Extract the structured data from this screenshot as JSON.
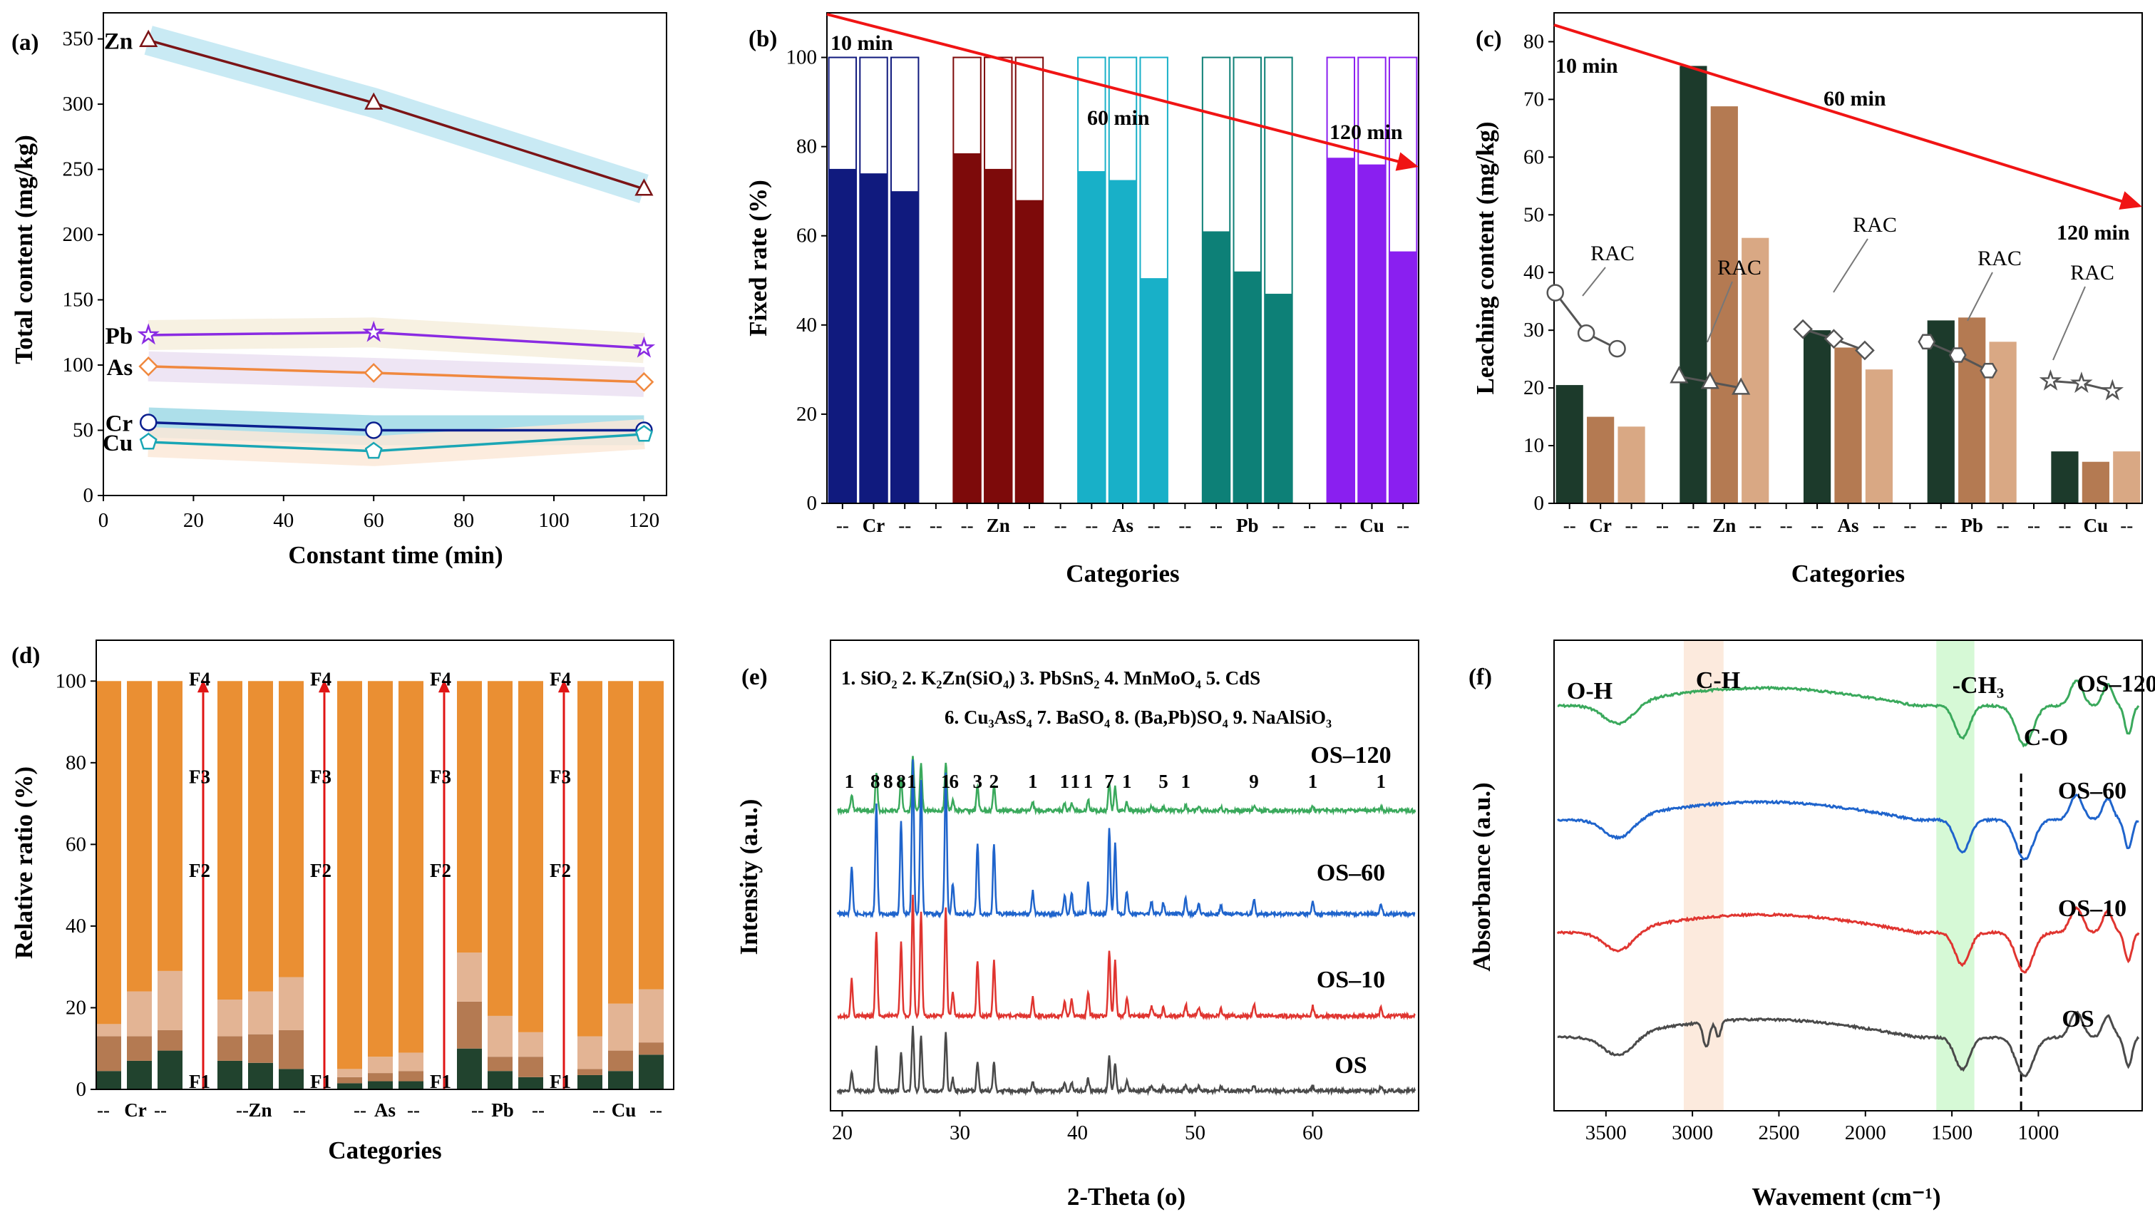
{
  "chart_data": [
    {
      "panel": "(a)",
      "type": "line",
      "xlabel": "Constant time (min)",
      "ylabel": "Total content (mg/kg)",
      "xlim": [
        0,
        125
      ],
      "ylim": [
        0,
        370
      ],
      "xticks": [
        "0",
        "20",
        "40",
        "60",
        "80",
        "100",
        "120"
      ],
      "yticks": [
        "0",
        "50",
        "100",
        "150",
        "200",
        "250",
        "300",
        "350"
      ],
      "x": [
        10,
        60,
        120
      ],
      "series": [
        {
          "name": "Zn",
          "values": [
            349,
            301,
            235
          ],
          "color": "#7b1416",
          "band": "#bfe6f2",
          "marker": "triangle"
        },
        {
          "name": "Pb",
          "values": [
            123,
            125,
            113
          ],
          "color": "#8a2be2",
          "band": "#f6eedd",
          "marker": "star"
        },
        {
          "name": "As",
          "values": [
            99,
            94,
            87
          ],
          "color": "#f0883e",
          "band": "#ebe1f2",
          "marker": "diamond"
        },
        {
          "name": "Cr",
          "values": [
            56,
            50,
            50
          ],
          "color": "#0b1f8f",
          "band": "#9fd9e6",
          "marker": "circle"
        },
        {
          "name": "Cu",
          "values": [
            41,
            34,
            47
          ],
          "color": "#1aa6b5",
          "band": "#fbe9d8",
          "marker": "pentagon"
        }
      ]
    },
    {
      "panel": "(b)",
      "type": "bar",
      "xlabel": "Categories",
      "ylabel": "Fixed rate (%)",
      "ylim": [
        0,
        110
      ],
      "yticks": [
        "0",
        "20",
        "40",
        "60",
        "80",
        "100"
      ],
      "ticklabels": [
        "--",
        "Cr",
        "--",
        "--",
        "--",
        "Zn",
        "--",
        "--",
        "--",
        "As",
        "--",
        "--",
        "--",
        "Pb",
        "--",
        "--",
        "--",
        "Cu",
        "--"
      ],
      "groups": [
        {
          "name": "Cr",
          "values": [
            75,
            74,
            70
          ],
          "color": "#101a7e"
        },
        {
          "name": "Zn",
          "values": [
            78.5,
            75,
            68
          ],
          "color": "#7d0a0a"
        },
        {
          "name": "As",
          "values": [
            74.5,
            72.5,
            50.5
          ],
          "color": "#18b0c8"
        },
        {
          "name": "Pb",
          "values": [
            61,
            52,
            47
          ],
          "color": "#0d8077"
        },
        {
          "name": "Cu",
          "values": [
            77.5,
            76,
            56.5
          ],
          "color": "#8a1ff0"
        }
      ],
      "annotations": [
        "10 min",
        "60 min",
        "120 min"
      ]
    },
    {
      "panel": "(c)",
      "type": "bar",
      "xlabel": "Categories",
      "ylabel": "Leaching content (mg/kg)",
      "ylim": [
        0,
        85
      ],
      "yticks": [
        "0",
        "10",
        "20",
        "30",
        "40",
        "50",
        "60",
        "70",
        "80"
      ],
      "ticklabels": [
        "--",
        "Cr",
        "--",
        "--",
        "--",
        "Zn",
        "--",
        "--",
        "--",
        "As",
        "--",
        "--",
        "--",
        "Pb",
        "--",
        "--",
        "--",
        "Cu",
        "--"
      ],
      "bar_colors": [
        "#1c3a2b",
        "#b47a52",
        "#d9a884"
      ],
      "groups": [
        {
          "name": "Cr",
          "values": [
            20.5,
            15,
            13.3
          ],
          "rac": [
            36.5,
            29.5,
            26.8
          ],
          "marker": "circle"
        },
        {
          "name": "Zn",
          "values": [
            75.8,
            68.8,
            46
          ],
          "rac": [
            22,
            21,
            20
          ],
          "marker": "triangle"
        },
        {
          "name": "As",
          "values": [
            30,
            27,
            23.2
          ],
          "rac": [
            30.2,
            28.5,
            26.5
          ],
          "marker": "diamond"
        },
        {
          "name": "Pb",
          "values": [
            31.7,
            32.2,
            28
          ],
          "rac": [
            28,
            25.7,
            23
          ],
          "marker": "hexagon"
        },
        {
          "name": "Cu",
          "values": [
            9,
            7.2,
            9
          ],
          "rac": [
            21.2,
            20.8,
            19.5
          ],
          "marker": "star"
        }
      ],
      "annotations": [
        "10 min",
        "60 min",
        "120 min"
      ],
      "rac_label": "RAC"
    },
    {
      "panel": "(d)",
      "type": "bar",
      "xlabel": "Categories",
      "ylabel": "Relative ratio (%)",
      "ylim": [
        0,
        110
      ],
      "yticks": [
        "0",
        "20",
        "40",
        "60",
        "80",
        "100"
      ],
      "ticklabels": [
        "--",
        "Cr",
        "--",
        "--",
        "Zn",
        "--",
        "--",
        "As",
        "--",
        "--",
        "Pb",
        "--",
        "--",
        "Cu",
        "--"
      ],
      "fraction_labels": [
        "F1",
        "F2",
        "F3",
        "F4"
      ],
      "colors": [
        "#21432e",
        "#b47a52",
        "#e3b494",
        "#ea8f33"
      ],
      "groups": [
        {
          "name": "Cr",
          "stacks": [
            [
              4.5,
              8.5,
              3,
              84
            ],
            [
              7,
              6,
              11,
              76
            ],
            [
              9.5,
              5,
              14.5,
              71
            ]
          ]
        },
        {
          "name": "Zn",
          "stacks": [
            [
              7,
              6,
              9,
              78
            ],
            [
              6.5,
              7,
              10.5,
              76
            ],
            [
              5,
              9.5,
              13,
              72.5
            ]
          ]
        },
        {
          "name": "As",
          "stacks": [
            [
              1.5,
              1.5,
              2,
              95
            ],
            [
              2,
              2,
              4,
              92
            ],
            [
              2,
              2.5,
              4.5,
              91
            ]
          ]
        },
        {
          "name": "Pb",
          "stacks": [
            [
              10,
              11.5,
              12,
              66.5
            ],
            [
              4.5,
              3.5,
              10,
              82
            ],
            [
              3,
              5,
              6,
              86
            ]
          ]
        },
        {
          "name": "Cu",
          "stacks": [
            [
              3.5,
              1.5,
              8,
              87
            ],
            [
              4.5,
              5,
              11.5,
              79
            ],
            [
              8.5,
              3,
              13,
              75.5
            ]
          ]
        }
      ]
    },
    {
      "panel": "(e)",
      "type": "line",
      "xlabel": "2-Theta (o)",
      "ylabel": "Intensity (a.u.)",
      "xlim": [
        19,
        69
      ],
      "xticks": [
        "20",
        "30",
        "40",
        "50",
        "60"
      ],
      "legend_line1": "1. SiO₂  2. K₂Zn(SiO₄)  3. PbSnS₂  4. MnMoO₄     5. CdS",
      "legend_line2": "6. Cu₃AsS₄  7. BaSO₄ 8. (Ba,Pb)SO₄ 9. NaAlSiO₃",
      "peaks": [
        [
          20.8,
          0.3
        ],
        [
          22.9,
          0.7
        ],
        [
          25.0,
          0.6
        ],
        [
          26.0,
          1.0
        ],
        [
          26.7,
          0.85
        ],
        [
          28.8,
          0.9
        ],
        [
          29.4,
          0.2
        ],
        [
          31.5,
          0.45
        ],
        [
          32.9,
          0.45
        ],
        [
          36.2,
          0.15
        ],
        [
          38.9,
          0.12
        ],
        [
          39.5,
          0.14
        ],
        [
          40.9,
          0.2
        ],
        [
          42.7,
          0.55
        ],
        [
          43.2,
          0.45
        ],
        [
          44.2,
          0.15
        ],
        [
          46.3,
          0.08
        ],
        [
          47.3,
          0.07
        ],
        [
          49.2,
          0.1
        ],
        [
          50.3,
          0.07
        ],
        [
          52.2,
          0.06
        ],
        [
          55.0,
          0.1
        ],
        [
          60.0,
          0.08
        ],
        [
          65.8,
          0.07
        ]
      ],
      "peak_numbers": [
        [
          "1",
          20.6
        ],
        [
          "8",
          22.8
        ],
        [
          "8",
          23.9
        ],
        [
          "8",
          25.0
        ],
        [
          "1",
          25.9
        ],
        [
          "1",
          28.8
        ],
        [
          "6",
          29.5
        ],
        [
          "3",
          31.5
        ],
        [
          "2",
          32.9
        ],
        [
          "7",
          42.7
        ],
        [
          "1",
          36.2
        ],
        [
          "1",
          38.9
        ],
        [
          "1",
          39.8
        ],
        [
          "1",
          40.9
        ],
        [
          "1",
          44.2
        ],
        [
          "5",
          47.3
        ],
        [
          "1",
          49.2
        ],
        [
          "9",
          55.0
        ],
        [
          "1",
          60.0
        ],
        [
          "1",
          65.8
        ]
      ],
      "series": [
        {
          "name": "OS–120",
          "color": "#3aa95c",
          "scale": 0.55
        },
        {
          "name": "OS–60",
          "color": "#1f64cc",
          "scale": 1.0
        },
        {
          "name": "OS–10",
          "color": "#e03530",
          "scale": 0.85
        },
        {
          "name": "OS",
          "color": "#4a4a4a",
          "scale": 0.65
        }
      ]
    },
    {
      "panel": "(f)",
      "type": "line",
      "xlabel": "Wavement (cm⁻¹)",
      "ylabel": "Absorbance (a.u.)",
      "xlim": [
        3800,
        400
      ],
      "xticks": [
        "3500",
        "3000",
        "2500",
        "2000",
        "1500",
        "1000"
      ],
      "band_labels": [
        "O-H",
        "C-H",
        "-CH₃",
        "C-O"
      ],
      "series": [
        {
          "name": "OS–120",
          "color": "#3aa95c"
        },
        {
          "name": "OS–60",
          "color": "#1f64cc"
        },
        {
          "name": "OS–10",
          "color": "#e03530"
        },
        {
          "name": "OS",
          "color": "#4a4a4a"
        }
      ]
    }
  ]
}
